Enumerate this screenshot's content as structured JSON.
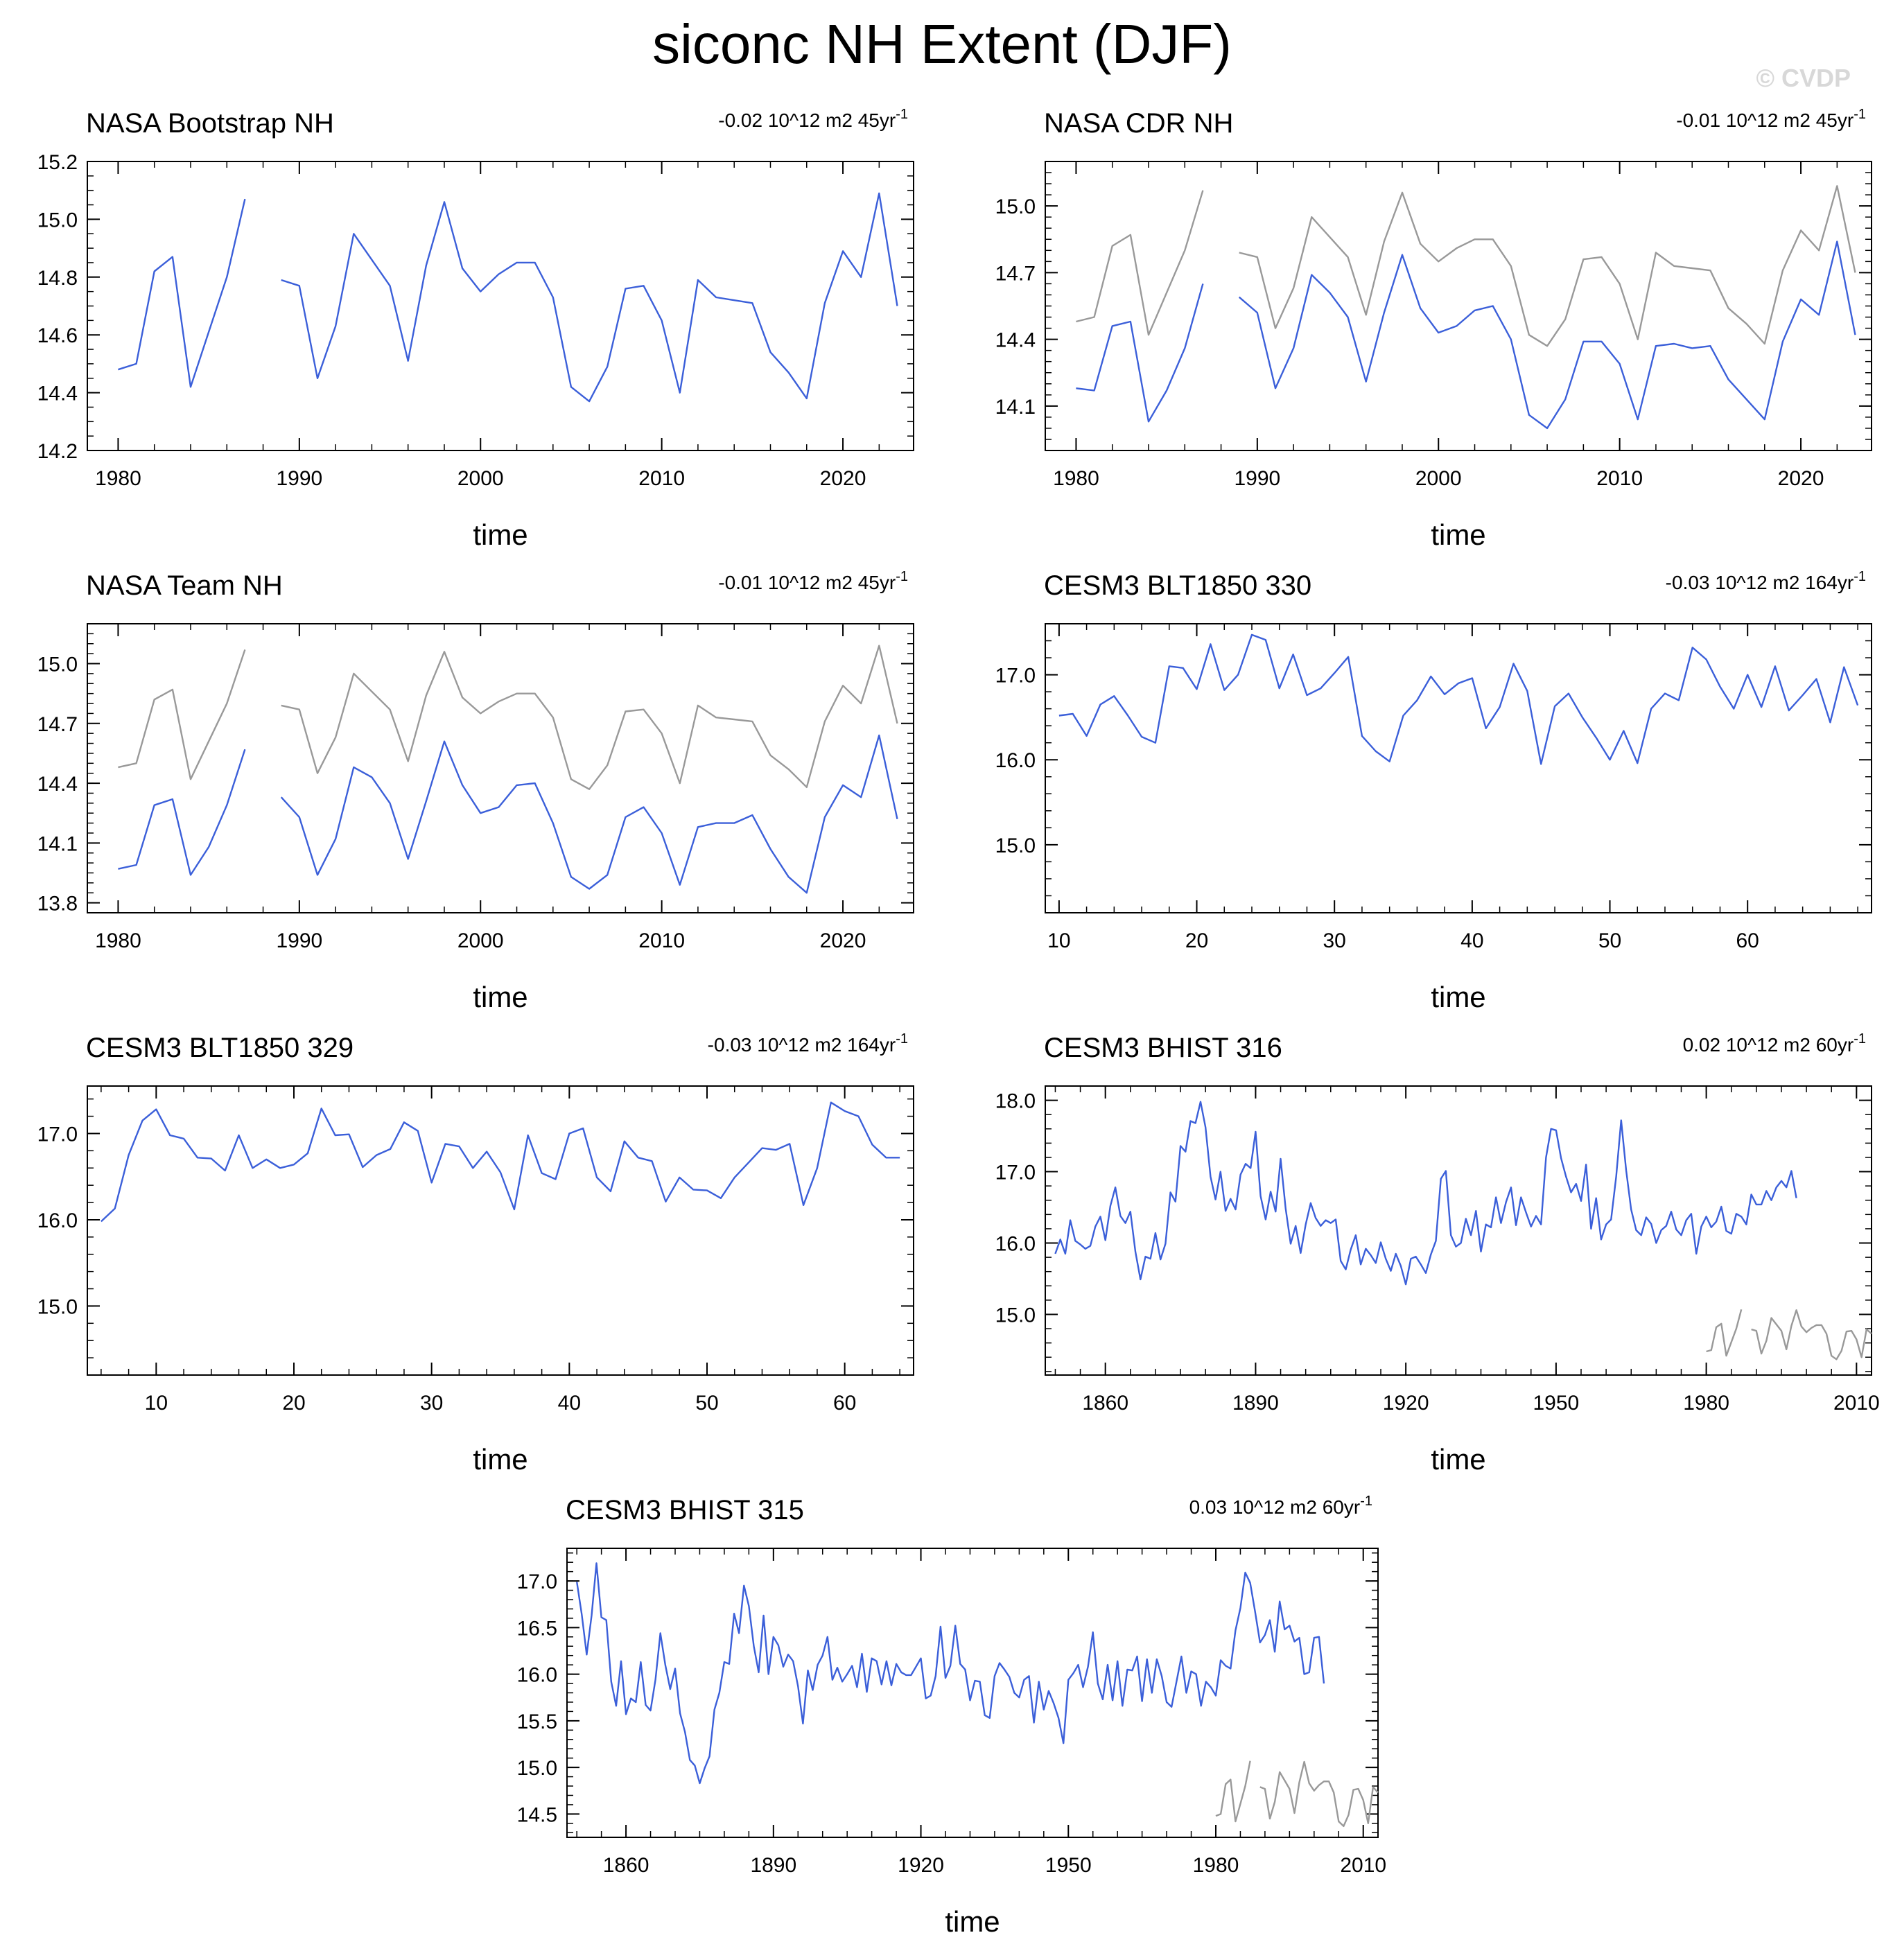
{
  "title": "siconc NH Extent (DJF)",
  "watermark": "© CVDP",
  "colors": {
    "model": "#3b5fd9",
    "obs": "#999999",
    "frame": "#000000"
  },
  "chart_data": [
    {
      "type": "line",
      "title": "NASA Bootstrap NH",
      "trend": "-0.02 10^12 m2 45yr",
      "trend_sup": "-1",
      "xlabel": "time",
      "xlim": [
        1978.3,
        2023.9
      ],
      "ylim": [
        14.2,
        15.2
      ],
      "xticks": [
        1980,
        1990,
        2000,
        2010,
        2020
      ],
      "yticks": [
        14.2,
        14.4,
        14.6,
        14.8,
        15.0,
        15.2
      ],
      "ydecimals": 1,
      "minor_y": 0.05,
      "minor_x": 2,
      "series": [
        {
          "role": "model",
          "x_start": 1980,
          "step": 1,
          "values": [
            14.48,
            14.5,
            14.82,
            14.87,
            14.42,
            14.61,
            14.8,
            15.07,
            null,
            14.79,
            14.77,
            14.45,
            14.63,
            14.95,
            14.86,
            14.77,
            14.51,
            14.84,
            15.06,
            14.83,
            14.75,
            14.81,
            14.85,
            14.85,
            14.73,
            14.42,
            14.37,
            14.49,
            14.76,
            14.77,
            14.65,
            14.4,
            14.79,
            14.73,
            14.72,
            14.71,
            14.54,
            14.47,
            14.38,
            14.71,
            14.89,
            14.8,
            15.09,
            14.7
          ]
        }
      ]
    },
    {
      "type": "line",
      "title": "NASA CDR NH",
      "trend": "-0.01 10^12 m2 45yr",
      "trend_sup": "-1",
      "xlabel": "time",
      "xlim": [
        1978.3,
        2023.9
      ],
      "ylim": [
        13.9,
        15.2
      ],
      "xticks": [
        1980,
        1990,
        2000,
        2010,
        2020
      ],
      "yticks": [
        14.1,
        14.4,
        14.7,
        15.0
      ],
      "ydecimals": 1,
      "minor_y": 0.05,
      "minor_x": 2,
      "series": [
        {
          "role": "obs",
          "x_start": 1980,
          "step": 1,
          "values": [
            14.48,
            14.5,
            14.82,
            14.87,
            14.42,
            14.61,
            14.8,
            15.07,
            null,
            14.79,
            14.77,
            14.45,
            14.63,
            14.95,
            14.86,
            14.77,
            14.51,
            14.84,
            15.06,
            14.83,
            14.75,
            14.81,
            14.85,
            14.85,
            14.73,
            14.42,
            14.37,
            14.49,
            14.76,
            14.77,
            14.65,
            14.4,
            14.79,
            14.73,
            14.72,
            14.71,
            14.54,
            14.47,
            14.38,
            14.71,
            14.89,
            14.8,
            15.09,
            14.7
          ]
        },
        {
          "role": "model",
          "x_start": 1980,
          "step": 1,
          "values": [
            14.18,
            14.17,
            14.46,
            14.48,
            14.03,
            14.17,
            14.36,
            14.65,
            null,
            14.59,
            14.52,
            14.18,
            14.36,
            14.69,
            14.61,
            14.5,
            14.21,
            14.52,
            14.78,
            14.54,
            14.43,
            14.46,
            14.53,
            14.55,
            14.4,
            14.06,
            14.0,
            14.13,
            14.39,
            14.39,
            14.29,
            14.04,
            14.37,
            14.38,
            14.36,
            14.37,
            14.22,
            14.13,
            14.04,
            14.39,
            14.58,
            14.51,
            14.84,
            14.42
          ]
        }
      ]
    },
    {
      "type": "line",
      "title": "NASA Team NH",
      "trend": "-0.01 10^12 m2 45yr",
      "trend_sup": "-1",
      "xlabel": "time",
      "xlim": [
        1978.3,
        2023.9
      ],
      "ylim": [
        13.75,
        15.2
      ],
      "xticks": [
        1980,
        1990,
        2000,
        2010,
        2020
      ],
      "yticks": [
        13.8,
        14.1,
        14.4,
        14.7,
        15.0
      ],
      "ydecimals": 1,
      "minor_y": 0.05,
      "minor_x": 2,
      "series": [
        {
          "role": "obs",
          "x_start": 1980,
          "step": 1,
          "values": [
            14.48,
            14.5,
            14.82,
            14.87,
            14.42,
            14.61,
            14.8,
            15.07,
            null,
            14.79,
            14.77,
            14.45,
            14.63,
            14.95,
            14.86,
            14.77,
            14.51,
            14.84,
            15.06,
            14.83,
            14.75,
            14.81,
            14.85,
            14.85,
            14.73,
            14.42,
            14.37,
            14.49,
            14.76,
            14.77,
            14.65,
            14.4,
            14.79,
            14.73,
            14.72,
            14.71,
            14.54,
            14.47,
            14.38,
            14.71,
            14.89,
            14.8,
            15.09,
            14.7
          ]
        },
        {
          "role": "model",
          "x_start": 1980,
          "step": 1,
          "values": [
            13.97,
            13.99,
            14.29,
            14.32,
            13.94,
            14.08,
            14.29,
            14.57,
            null,
            14.33,
            14.23,
            13.94,
            14.12,
            14.48,
            14.43,
            14.3,
            14.02,
            14.31,
            14.61,
            14.39,
            14.25,
            14.28,
            14.39,
            14.4,
            14.2,
            13.93,
            13.87,
            13.94,
            14.23,
            14.28,
            14.15,
            13.89,
            14.18,
            14.2,
            14.2,
            14.24,
            14.07,
            13.93,
            13.85,
            14.23,
            14.39,
            14.33,
            14.64,
            14.22
          ]
        }
      ]
    },
    {
      "type": "line",
      "title": "CESM3 BLT1850 330",
      "trend": "-0.03 10^12 m2 164yr",
      "trend_sup": "-1",
      "xlabel": "time",
      "xlim": [
        9.0,
        69.0
      ],
      "ylim": [
        14.2,
        17.6
      ],
      "xticks": [
        10,
        20,
        30,
        40,
        50,
        60
      ],
      "yticks": [
        15.0,
        16.0,
        17.0
      ],
      "ydecimals": 1,
      "minor_y": 0.2,
      "minor_x": 2,
      "series": [
        {
          "role": "model",
          "x_start": 10,
          "step": 1,
          "values": [
            16.52,
            16.54,
            16.28,
            16.65,
            16.75,
            16.52,
            16.27,
            16.2,
            17.1,
            17.08,
            16.83,
            17.36,
            16.82,
            17.0,
            17.47,
            17.41,
            16.84,
            17.24,
            16.76,
            16.84,
            17.02,
            17.21,
            16.28,
            16.1,
            15.98,
            16.52,
            16.7,
            16.98,
            16.77,
            16.9,
            16.96,
            16.37,
            16.62,
            17.13,
            16.81,
            15.95,
            16.63,
            16.78,
            16.5,
            16.26,
            16.0,
            16.34,
            15.96,
            16.6,
            16.78,
            16.7,
            17.32,
            17.18,
            16.86,
            16.6,
            17.0,
            16.62,
            17.1,
            16.58,
            16.76,
            16.95,
            16.44,
            17.09,
            16.64
          ]
        }
      ]
    },
    {
      "type": "line",
      "title": "CESM3 BLT1850 329",
      "trend": "-0.03 10^12 m2 164yr",
      "trend_sup": "-1",
      "xlabel": "time",
      "xlim": [
        5.0,
        65.0
      ],
      "ylim": [
        14.2,
        17.55
      ],
      "xticks": [
        10,
        20,
        30,
        40,
        50,
        60
      ],
      "yticks": [
        15.0,
        16.0,
        17.0
      ],
      "ydecimals": 1,
      "minor_y": 0.2,
      "minor_x": 2,
      "series": [
        {
          "role": "model",
          "x_start": 6,
          "step": 1,
          "values": [
            15.98,
            16.13,
            16.75,
            17.15,
            17.28,
            16.98,
            16.94,
            16.72,
            16.71,
            16.57,
            16.98,
            16.6,
            16.7,
            16.6,
            16.64,
            16.77,
            17.29,
            16.98,
            16.99,
            16.61,
            16.75,
            16.82,
            17.13,
            17.03,
            16.43,
            16.88,
            16.85,
            16.6,
            16.79,
            16.55,
            16.12,
            16.98,
            16.54,
            16.47,
            17.0,
            17.06,
            16.49,
            16.33,
            16.91,
            16.72,
            16.68,
            16.21,
            16.49,
            16.35,
            16.34,
            16.25,
            16.49,
            16.66,
            16.83,
            16.81,
            16.88,
            16.17,
            16.6,
            17.36,
            17.26,
            17.2,
            16.87,
            16.72,
            16.72
          ]
        }
      ]
    },
    {
      "type": "line",
      "title": "CESM3 BHIST 316",
      "trend": "0.02 10^12 m2 60yr",
      "trend_sup": "-1",
      "xlabel": "time",
      "xlim": [
        1848.0,
        2013.0
      ],
      "ylim": [
        14.15,
        18.2
      ],
      "xticks": [
        1860,
        1890,
        1920,
        1950,
        1980,
        2010
      ],
      "yticks": [
        15.0,
        16.0,
        17.0,
        18.0
      ],
      "ydecimals": 1,
      "minor_y": 0.2,
      "minor_x": 5,
      "series": [
        {
          "role": "model",
          "x_start": 1850,
          "step": 1,
          "values": [
            15.85,
            16.05,
            15.85,
            16.32,
            16.03,
            15.98,
            15.92,
            15.96,
            16.23,
            16.37,
            16.04,
            16.52,
            16.78,
            16.38,
            16.28,
            16.44,
            15.88,
            15.49,
            15.81,
            15.78,
            16.14,
            15.77,
            15.99,
            16.71,
            16.58,
            17.36,
            17.28,
            17.71,
            17.68,
            17.98,
            17.62,
            16.93,
            16.61,
            17.0,
            16.45,
            16.62,
            16.47,
            16.96,
            17.11,
            17.05,
            17.56,
            16.66,
            16.33,
            16.72,
            16.44,
            17.18,
            16.48,
            15.99,
            16.24,
            15.86,
            16.26,
            16.56,
            16.35,
            16.24,
            16.32,
            16.28,
            16.33,
            15.75,
            15.63,
            15.91,
            16.11,
            15.7,
            15.92,
            15.83,
            15.72,
            16.01,
            15.78,
            15.61,
            15.85,
            15.68,
            15.42,
            15.78,
            15.81,
            15.7,
            15.58,
            15.84,
            16.03,
            16.9,
            17.01,
            16.11,
            15.95,
            16.0,
            16.34,
            16.11,
            16.45,
            15.88,
            16.26,
            16.22,
            16.64,
            16.28,
            16.57,
            16.78,
            16.25,
            16.64,
            16.43,
            16.23,
            16.38,
            16.26,
            17.2,
            17.6,
            17.58,
            17.19,
            16.93,
            16.71,
            16.83,
            16.59,
            17.1,
            16.2,
            16.63,
            16.05,
            16.26,
            16.33,
            16.93,
            17.72,
            17.02,
            16.47,
            16.18,
            16.11,
            16.36,
            16.27,
            16.0,
            16.18,
            16.24,
            16.44,
            16.19,
            16.11,
            16.32,
            16.41,
            15.85,
            16.23,
            16.37,
            16.22,
            16.3,
            16.51,
            16.17,
            16.13,
            16.41,
            16.37,
            16.26,
            16.68,
            16.54,
            16.54,
            16.73,
            16.6,
            16.78,
            16.87,
            16.78,
            17.01,
            16.63
          ]
        },
        {
          "role": "obs",
          "x_start": 1980,
          "step": 1,
          "values": [
            14.48,
            14.5,
            14.82,
            14.87,
            14.42,
            14.61,
            14.8,
            15.07,
            null,
            14.79,
            14.77,
            14.45,
            14.63,
            14.95,
            14.86,
            14.77,
            14.51,
            14.84,
            15.06,
            14.83,
            14.75,
            14.81,
            14.85,
            14.85,
            14.73,
            14.42,
            14.37,
            14.49,
            14.76,
            14.77,
            14.65,
            14.4,
            14.79,
            14.73
          ]
        }
      ]
    },
    {
      "type": "line",
      "title": "CESM3 BHIST 315",
      "trend": "0.03 10^12 m2 60yr",
      "trend_sup": "-1",
      "xlabel": "time",
      "xlim": [
        1848.0,
        2013.0
      ],
      "ylim": [
        14.25,
        17.35
      ],
      "xticks": [
        1860,
        1890,
        1920,
        1950,
        1980,
        2010
      ],
      "yticks": [
        14.5,
        15.0,
        15.5,
        16.0,
        16.5,
        17.0
      ],
      "ydecimals": 1,
      "minor_y": 0.1,
      "minor_x": 5,
      "series": [
        {
          "role": "model",
          "x_start": 1850,
          "step": 1,
          "values": [
            16.99,
            16.64,
            16.21,
            16.63,
            17.19,
            16.61,
            16.58,
            15.92,
            15.66,
            16.14,
            15.57,
            15.74,
            15.7,
            16.13,
            15.67,
            15.61,
            15.94,
            16.44,
            16.1,
            15.84,
            16.06,
            15.58,
            15.38,
            15.08,
            15.02,
            14.83,
            14.99,
            15.12,
            15.62,
            15.8,
            16.13,
            16.11,
            16.65,
            16.44,
            16.95,
            16.73,
            16.3,
            16.02,
            16.63,
            16.0,
            16.4,
            16.31,
            16.08,
            16.21,
            16.14,
            15.87,
            15.47,
            16.04,
            15.83,
            16.1,
            16.2,
            16.4,
            15.94,
            16.07,
            15.92,
            16.0,
            16.09,
            15.86,
            16.22,
            15.81,
            16.17,
            16.14,
            15.89,
            16.14,
            15.88,
            16.11,
            16.02,
            15.99,
            15.99,
            16.08,
            16.17,
            15.74,
            15.77,
            15.98,
            16.51,
            15.96,
            16.09,
            16.52,
            16.11,
            16.05,
            15.72,
            15.93,
            15.92,
            15.56,
            15.53,
            15.98,
            16.12,
            16.05,
            15.97,
            15.8,
            15.75,
            15.94,
            15.98,
            15.48,
            15.92,
            15.62,
            15.82,
            15.69,
            15.53,
            15.26,
            15.94,
            16.01,
            16.1,
            15.86,
            16.08,
            16.45,
            15.9,
            15.73,
            16.1,
            15.72,
            16.14,
            15.66,
            16.05,
            16.04,
            16.19,
            15.71,
            16.16,
            15.8,
            16.16,
            15.98,
            15.7,
            15.65,
            15.92,
            16.19,
            15.8,
            16.03,
            16.0,
            15.66,
            15.92,
            15.86,
            15.77,
            16.15,
            16.09,
            16.06,
            16.47,
            16.71,
            17.09,
            16.98,
            16.67,
            16.34,
            16.42,
            16.58,
            16.24,
            16.78,
            16.48,
            16.52,
            16.35,
            16.39,
            16.0,
            16.02,
            16.39,
            16.4,
            15.9
          ]
        },
        {
          "role": "obs",
          "x_start": 1980,
          "step": 1,
          "values": [
            14.48,
            14.5,
            14.82,
            14.87,
            14.42,
            14.61,
            14.8,
            15.07,
            null,
            14.79,
            14.77,
            14.45,
            14.63,
            14.95,
            14.86,
            14.77,
            14.51,
            14.84,
            15.06,
            14.83,
            14.75,
            14.81,
            14.85,
            14.85,
            14.73,
            14.42,
            14.37,
            14.49,
            14.76,
            14.77,
            14.65,
            14.4,
            14.79,
            14.73
          ]
        }
      ]
    }
  ]
}
